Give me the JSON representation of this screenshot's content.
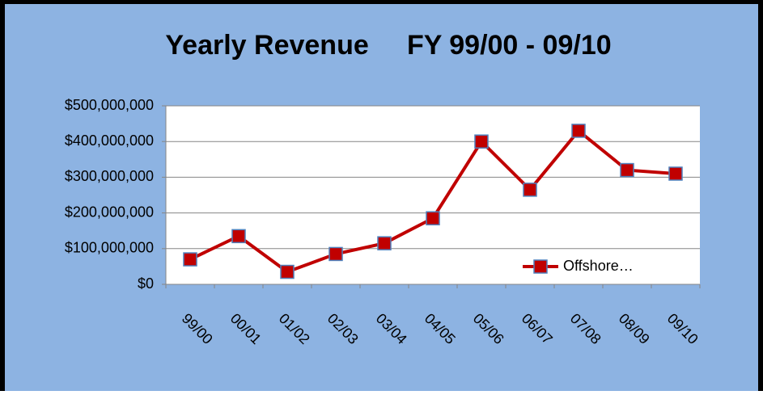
{
  "chart_data": {
    "type": "line",
    "title": "Yearly Revenue     FY 99/00 - 09/10",
    "categories": [
      "99/00",
      "00/01",
      "01/02",
      "02/03",
      "03/04",
      "04/05",
      "05/06",
      "06/07",
      "07/08",
      "08/09",
      "09/10"
    ],
    "series": [
      {
        "name": "Offshore…",
        "color": "#c00000",
        "values": [
          70000000,
          135000000,
          35000000,
          85000000,
          115000000,
          185000000,
          400000000,
          265000000,
          430000000,
          320000000,
          310000000
        ]
      }
    ],
    "ylim": [
      0,
      500000000
    ],
    "yticks": [
      {
        "value": 0,
        "label": "$0"
      },
      {
        "value": 100000000,
        "label": "$100,000,000"
      },
      {
        "value": 200000000,
        "label": "$200,000,000"
      },
      {
        "value": 300000000,
        "label": "$300,000,000"
      },
      {
        "value": 400000000,
        "label": "$400,000,000"
      },
      {
        "value": 500000000,
        "label": "$500,000,000"
      }
    ],
    "grid": true,
    "legend": "lower right"
  }
}
